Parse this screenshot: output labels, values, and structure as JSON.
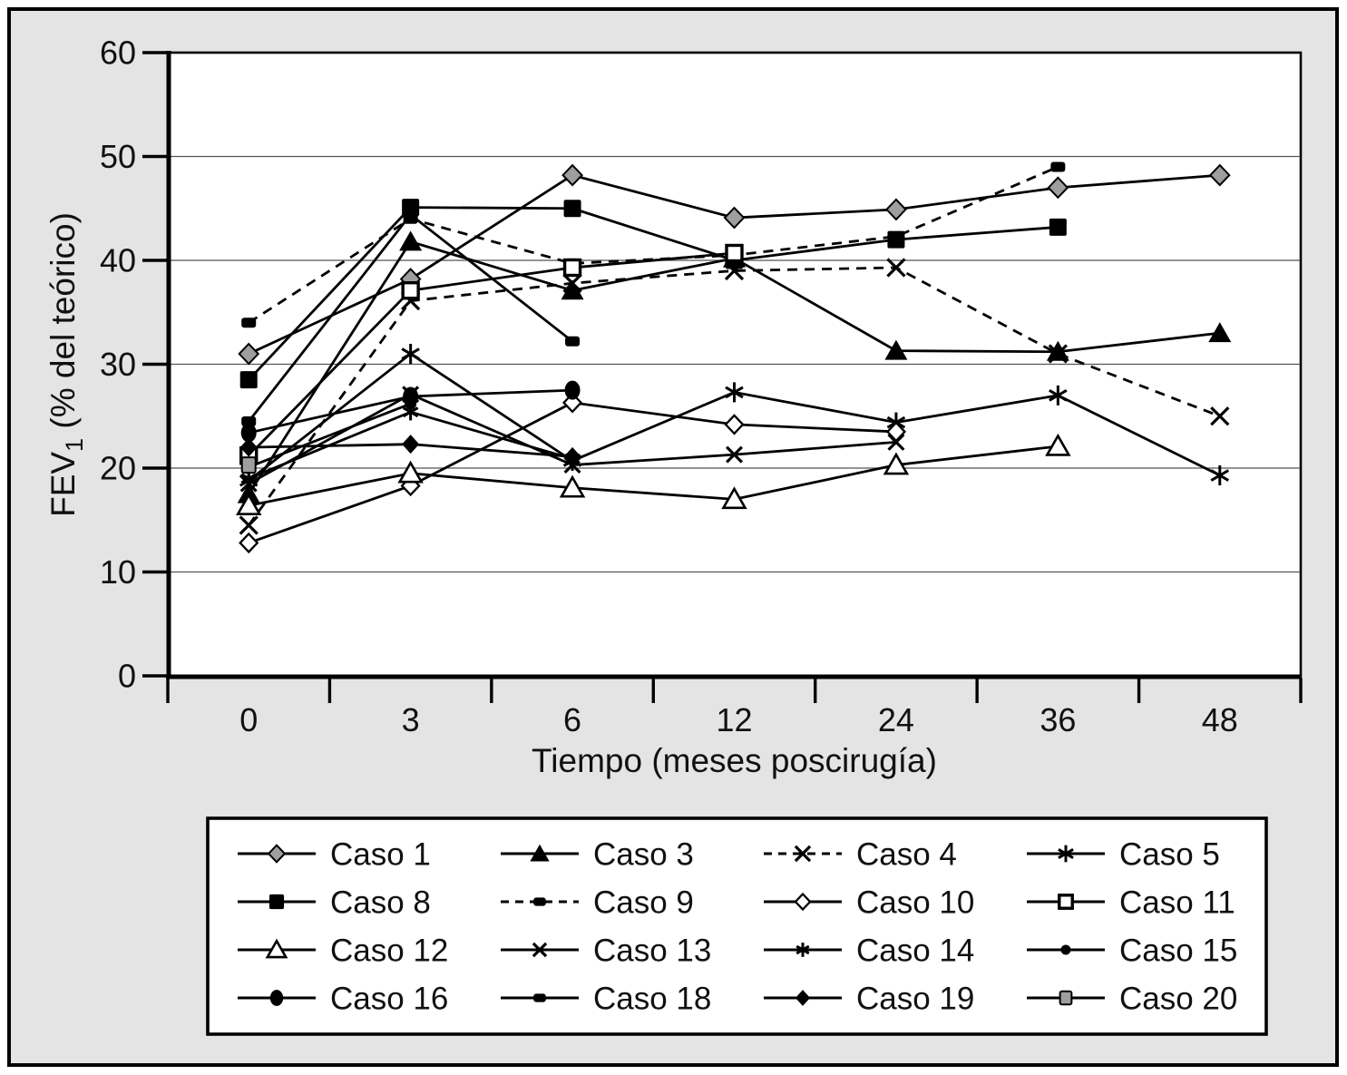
{
  "figure": {
    "background": "#e4e4e4",
    "plot_background": "#ffffff",
    "frame_color": "#000000",
    "grid_color": "#555555",
    "accent_gray": "#9e9e9e"
  },
  "chart_data": {
    "type": "line",
    "title": "",
    "xlabel": "Tiempo (meses poscirugía)",
    "ylabel": "FEV1 (% del teórico)",
    "ylabel_fev": "FEV",
    "ylabel_sub": "1",
    "ylabel_rest": " (% del teórico)",
    "x_categories": [
      "0",
      "3",
      "6",
      "12",
      "24",
      "36",
      "48"
    ],
    "y_ticks": [
      0,
      10,
      20,
      30,
      40,
      50,
      60
    ],
    "ylim": [
      0,
      60
    ],
    "grid": "horizontal-major",
    "legend_position": "bottom-box",
    "series": [
      {
        "name": "Caso 1",
        "marker": "diamond-gray",
        "line": "solid",
        "points": [
          [
            0,
            31
          ],
          [
            1,
            38.2
          ],
          [
            2,
            48.2
          ],
          [
            3,
            44.1
          ],
          [
            4,
            44.9
          ],
          [
            5,
            47
          ],
          [
            6,
            48.2
          ]
        ]
      },
      {
        "name": "Caso 3",
        "marker": "triangle-filled",
        "line": "solid",
        "points": [
          [
            0,
            17.5
          ],
          [
            1,
            41.8
          ],
          [
            2,
            37.1
          ],
          [
            3,
            40.2
          ],
          [
            4,
            31.3
          ],
          [
            5,
            31.2
          ],
          [
            6,
            33
          ]
        ]
      },
      {
        "name": "Caso 4",
        "marker": "x",
        "line": "dashed",
        "points": [
          [
            0,
            14.5
          ],
          [
            1,
            36.1
          ],
          [
            2,
            37.8
          ],
          [
            3,
            39
          ],
          [
            4,
            39.3
          ],
          [
            5,
            31
          ],
          [
            6,
            25
          ]
        ]
      },
      {
        "name": "Caso 5",
        "marker": "asterisk",
        "line": "solid",
        "points": [
          [
            0,
            18.8
          ],
          [
            1,
            31
          ],
          [
            2,
            20.7
          ],
          [
            3,
            27.3
          ],
          [
            4,
            24.4
          ],
          [
            5,
            27
          ],
          [
            6,
            19.3
          ]
        ]
      },
      {
        "name": "Caso 8",
        "marker": "square-filled",
        "line": "solid",
        "points": [
          [
            0,
            28.5
          ],
          [
            1,
            45.1
          ],
          [
            2,
            45
          ],
          [
            3,
            40
          ],
          [
            4,
            42
          ],
          [
            5,
            43.2
          ]
        ]
      },
      {
        "name": "Caso 9",
        "marker": "square-small-filled",
        "line": "dashed",
        "points": [
          [
            0,
            34
          ],
          [
            1,
            44
          ],
          [
            2,
            39.7
          ],
          [
            3,
            40.5
          ],
          [
            4,
            42.3
          ],
          [
            5,
            49
          ]
        ]
      },
      {
        "name": "Caso 10",
        "marker": "diamond-open",
        "line": "solid",
        "points": [
          [
            0,
            12.8
          ],
          [
            1,
            18.3
          ],
          [
            2,
            26.3
          ],
          [
            3,
            24.2
          ],
          [
            4,
            23.5
          ]
        ]
      },
      {
        "name": "Caso 11",
        "marker": "square-open",
        "line": "solid",
        "points": [
          [
            0,
            21.2
          ],
          [
            1,
            37.1
          ],
          [
            2,
            39.3
          ],
          [
            3,
            40.7
          ]
        ]
      },
      {
        "name": "Caso 12",
        "marker": "triangle-open",
        "line": "solid",
        "points": [
          [
            0,
            16.4
          ],
          [
            1,
            19.5
          ],
          [
            2,
            18.1
          ],
          [
            3,
            17
          ],
          [
            4,
            20.3
          ],
          [
            5,
            22.1
          ]
        ]
      },
      {
        "name": "Caso 13",
        "marker": "x-small",
        "line": "solid",
        "points": [
          [
            0,
            18.5
          ],
          [
            1,
            27.1
          ],
          [
            2,
            20.3
          ],
          [
            3,
            21.3
          ],
          [
            4,
            22.5
          ]
        ]
      },
      {
        "name": "Caso 14",
        "marker": "asterisk-small",
        "line": "solid",
        "points": [
          [
            0,
            19
          ],
          [
            1,
            25.4
          ],
          [
            2,
            20.9
          ]
        ]
      },
      {
        "name": "Caso 15",
        "marker": "circle-small",
        "line": "solid",
        "points": [
          [
            0,
            20.1
          ],
          [
            1,
            26.2
          ]
        ]
      },
      {
        "name": "Caso 16",
        "marker": "circle",
        "line": "solid",
        "points": [
          [
            0,
            23.4
          ],
          [
            1,
            26.9
          ],
          [
            2,
            27.5
          ]
        ]
      },
      {
        "name": "Caso 18",
        "marker": "square-small-filled",
        "line": "solid",
        "points": [
          [
            0,
            24.5
          ],
          [
            1,
            44.4
          ],
          [
            2,
            32.2
          ]
        ]
      },
      {
        "name": "Caso 19",
        "marker": "diamond-filled",
        "line": "solid",
        "points": [
          [
            0,
            22
          ],
          [
            1,
            22.3
          ],
          [
            2,
            21.1
          ]
        ]
      },
      {
        "name": "Caso 20",
        "marker": "square-gray",
        "line": "solid",
        "points": [
          [
            0,
            20.3
          ]
        ]
      }
    ]
  }
}
